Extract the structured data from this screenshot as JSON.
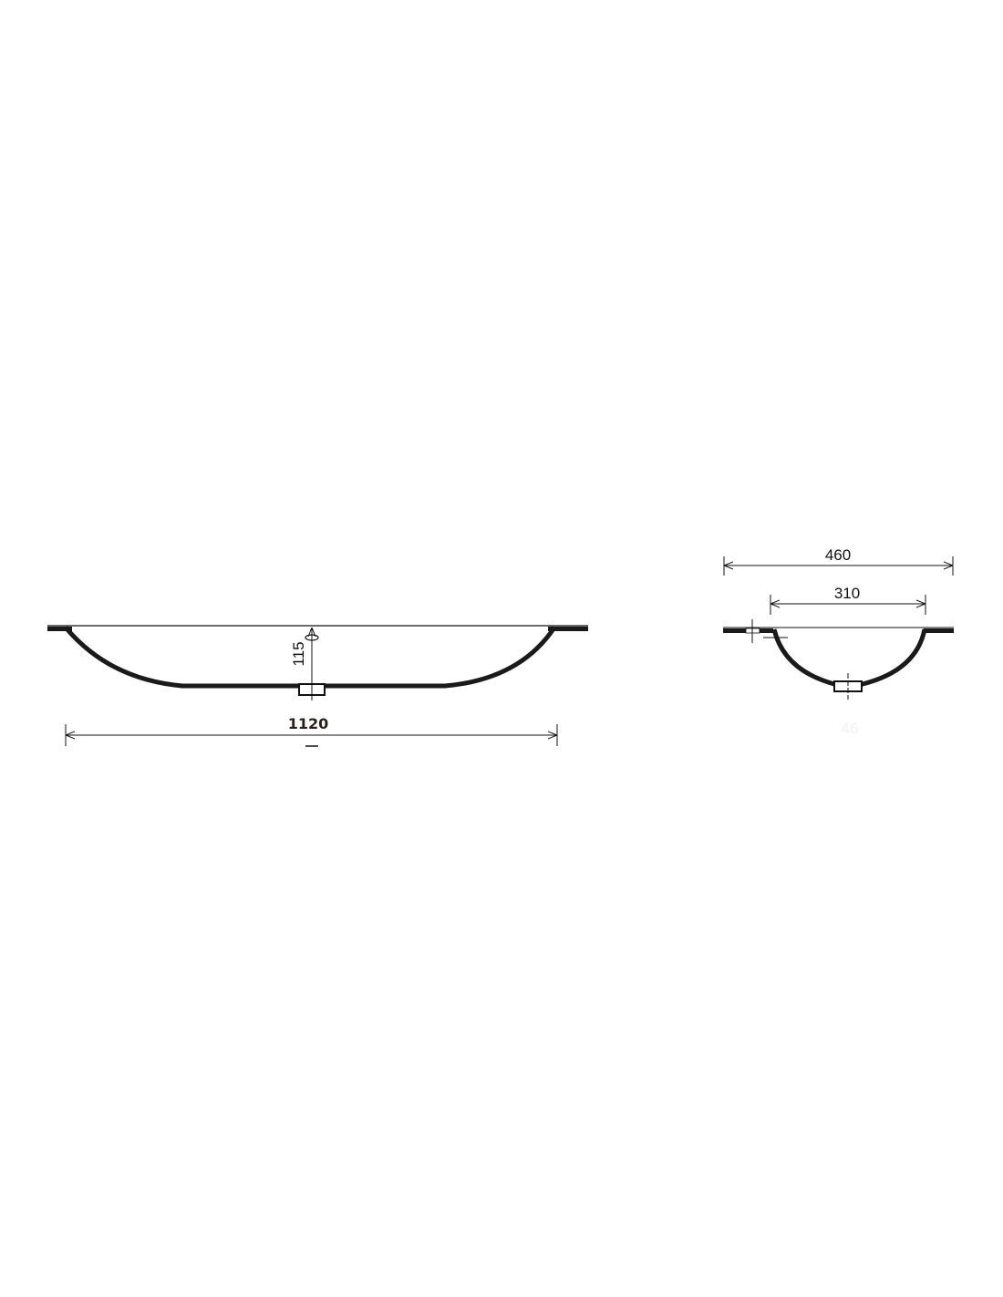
{
  "drawing": {
    "front_view": {
      "depth_label": "115",
      "width_label": "1120"
    },
    "side_view": {
      "outer_width_label": "460",
      "inner_width_label": "310",
      "faint_label": "46"
    },
    "colors": {
      "line": "#111111",
      "fill": "#1a1a1a"
    }
  }
}
